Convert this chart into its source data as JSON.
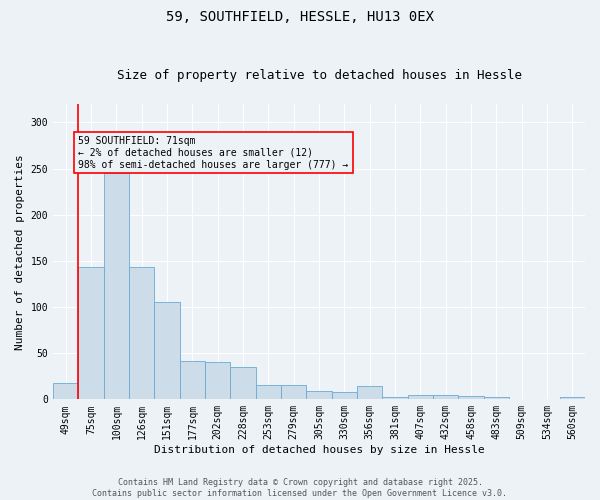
{
  "title1": "59, SOUTHFIELD, HESSLE, HU13 0EX",
  "title2": "Size of property relative to detached houses in Hessle",
  "xlabel": "Distribution of detached houses by size in Hessle",
  "ylabel": "Number of detached properties",
  "categories": [
    "49sqm",
    "75sqm",
    "100sqm",
    "126sqm",
    "151sqm",
    "177sqm",
    "202sqm",
    "228sqm",
    "253sqm",
    "279sqm",
    "305sqm",
    "330sqm",
    "356sqm",
    "381sqm",
    "407sqm",
    "432sqm",
    "458sqm",
    "483sqm",
    "509sqm",
    "534sqm",
    "560sqm"
  ],
  "values": [
    18,
    143,
    245,
    143,
    106,
    42,
    40,
    35,
    15,
    15,
    9,
    8,
    14,
    3,
    5,
    5,
    4,
    2,
    0,
    0,
    2
  ],
  "bar_color": "#ccdce8",
  "bar_edge_color": "#6aaad4",
  "annotation_title": "59 SOUTHFIELD: 71sqm",
  "annotation_line1": "← 2% of detached houses are smaller (12)",
  "annotation_line2": "98% of semi-detached houses are larger (777) →",
  "footer1": "Contains HM Land Registry data © Crown copyright and database right 2025.",
  "footer2": "Contains public sector information licensed under the Open Government Licence v3.0.",
  "ylim": [
    0,
    320
  ],
  "yticks": [
    0,
    50,
    100,
    150,
    200,
    250,
    300
  ],
  "bg_color": "#edf2f7",
  "grid_color": "#ffffff",
  "title_fontsize": 10,
  "subtitle_fontsize": 9,
  "axis_label_fontsize": 8,
  "tick_fontsize": 7,
  "annotation_fontsize": 7,
  "footer_fontsize": 6
}
